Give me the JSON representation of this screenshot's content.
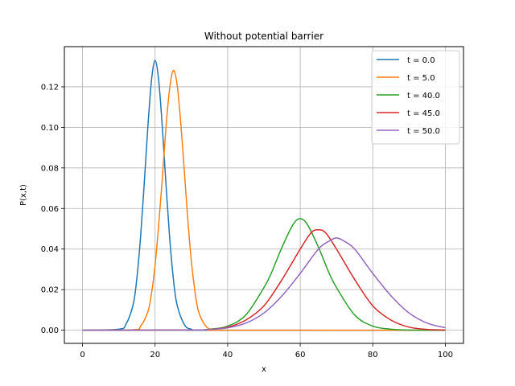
{
  "chart_data": {
    "type": "line",
    "title": "Without potential barrier",
    "xlabel": "x",
    "ylabel": "P(x,t)",
    "xlim": [
      -5,
      105
    ],
    "ylim": [
      -0.0065,
      0.1398
    ],
    "xticks": [
      0,
      20,
      40,
      60,
      80,
      100
    ],
    "xtick_labels": [
      "0",
      "20",
      "40",
      "60",
      "80",
      "100"
    ],
    "yticks": [
      0.0,
      0.02,
      0.04,
      0.06,
      0.08,
      0.1,
      0.12
    ],
    "ytick_labels": [
      "0.00",
      "0.02",
      "0.04",
      "0.06",
      "0.08",
      "0.10",
      "0.12"
    ],
    "grid": true,
    "legend_position": "upper right",
    "series": [
      {
        "name": "t = 0.0",
        "color": "#1f77b4",
        "x": [
          0,
          10,
          12,
          14,
          15,
          16,
          17,
          18,
          19,
          20,
          21,
          22,
          23,
          24,
          25,
          26,
          28,
          30,
          35,
          100
        ],
        "y": [
          0,
          0.0005,
          0.003,
          0.013,
          0.026,
          0.046,
          0.072,
          0.1,
          0.123,
          0.133,
          0.123,
          0.1,
          0.072,
          0.046,
          0.026,
          0.013,
          0.003,
          0.0005,
          0,
          0
        ]
      },
      {
        "name": "t = 5.0",
        "color": "#ff7f0e",
        "x": [
          0,
          14,
          16,
          18,
          19,
          20,
          21,
          22,
          23,
          24,
          25,
          26,
          27,
          28,
          29,
          30,
          31,
          32,
          34,
          36,
          40,
          100
        ],
        "y": [
          0,
          0.0002,
          0.002,
          0.009,
          0.018,
          0.032,
          0.052,
          0.075,
          0.1,
          0.119,
          0.128,
          0.122,
          0.104,
          0.08,
          0.055,
          0.034,
          0.019,
          0.009,
          0.002,
          0.0002,
          0,
          0
        ]
      },
      {
        "name": "t = 40.0",
        "color": "#2ca02c",
        "x": [
          0,
          30,
          35,
          40,
          45,
          50,
          52,
          55,
          58,
          60,
          62,
          65,
          68,
          70,
          75,
          80,
          85,
          90,
          95,
          100
        ],
        "y": [
          0,
          0.0001,
          0.0005,
          0.002,
          0.0075,
          0.021,
          0.028,
          0.041,
          0.052,
          0.055,
          0.052,
          0.041,
          0.028,
          0.021,
          0.0075,
          0.002,
          0.0005,
          0.0001,
          0,
          0
        ]
      },
      {
        "name": "t = 45.0",
        "color": "#d62728",
        "x": [
          0,
          30,
          35,
          40,
          45,
          50,
          55,
          60,
          63,
          65,
          67,
          70,
          75,
          80,
          85,
          90,
          95,
          100
        ],
        "y": [
          0,
          0.0001,
          0.0004,
          0.0015,
          0.005,
          0.012,
          0.025,
          0.04,
          0.048,
          0.0495,
          0.048,
          0.04,
          0.025,
          0.012,
          0.005,
          0.0015,
          0.0004,
          0.0001
        ]
      },
      {
        "name": "t = 50.0",
        "color": "#9467bd",
        "x": [
          0,
          30,
          35,
          40,
          45,
          50,
          55,
          60,
          65,
          68,
          70,
          72,
          75,
          80,
          85,
          90,
          95,
          100
        ],
        "y": [
          0,
          0.0001,
          0.0004,
          0.0012,
          0.0035,
          0.0085,
          0.017,
          0.028,
          0.04,
          0.044,
          0.0455,
          0.044,
          0.04,
          0.028,
          0.017,
          0.0085,
          0.0035,
          0.0012
        ]
      }
    ]
  }
}
